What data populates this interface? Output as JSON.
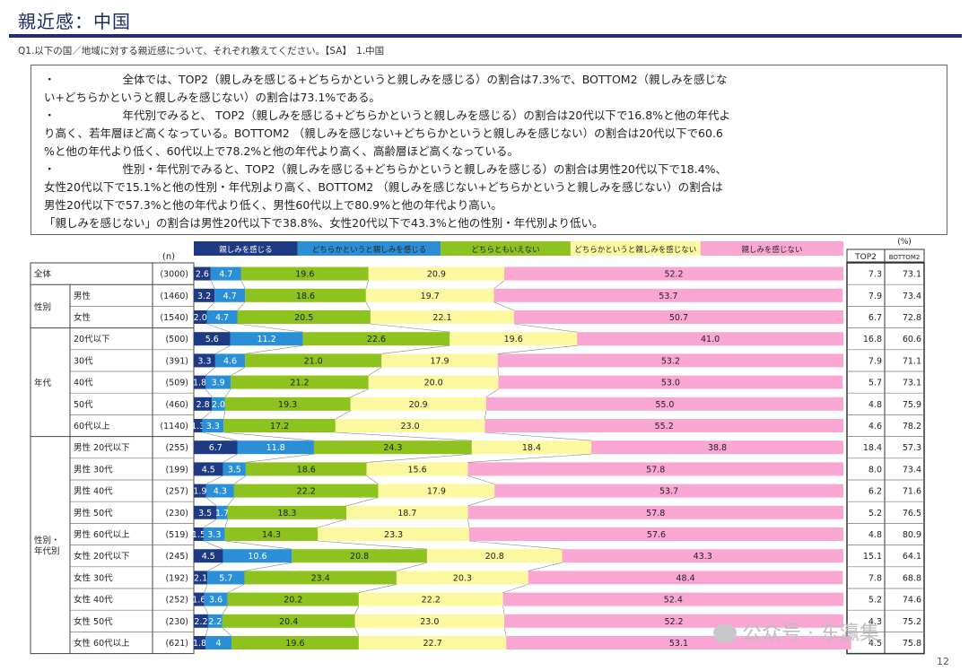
{
  "header": {
    "title": "親近感：中国",
    "question": "Q1.以下の国／地域に対する親近感について、それぞれ教えてください。【SA】　1.中国"
  },
  "summary": {
    "lines": [
      "・　　　　　　全体では、TOP2（親しみを感じる+どちらかというと親しみを感じる）の割合は7.3%で、BOTTOM2（親しみを感じな",
      "い+どちらかというと親しみを感じない）の割合は73.1%である。",
      "・　　　　　　年代別でみると、 TOP2（親しみを感じる+どちらかというと親しみを感じる）の割合は20代以下で16.8%と他の年代よ",
      "り高く、若年層ほど高くなっている。BOTTOM2 （親しみを感じない+どちらかというと親しみを感じない）の割合は20代以下で60.6",
      "%と他の年代より低く、60代以上で78.2%と他の年代より高く、高齢層ほど高くなっている。",
      "・　　　　　　性別・年代別でみると、TOP2（親しみを感じる+どちらかというと親しみを感じる）の割合は男性20代以下で18.4%、",
      "女性20代以下で15.1%と他の性別・年代別より高く、BOTTOM2 （親しみを感じない+どちらかというと親しみを感じない）の割合は",
      "男性20代以下で57.3%と他の年代より低く、男性60代以上で80.9%と他の年代より高い。",
      "「親しみを感じない」の割合は男性20代以下で38.8%、女性20代以下で43.3%と他の性別・年代別より低い。"
    ]
  },
  "page_number": "12",
  "watermark": "公众号 · 东瀛集",
  "chart_data": {
    "type": "bar",
    "orientation": "horizontal-stacked-100",
    "n_label": "(n)",
    "unit_label": "(%)",
    "top2_label": "TOP2",
    "bottom2_label": "BOTTOM2",
    "series": [
      {
        "name": "親しみを感じる",
        "color": "#1f3a84"
      },
      {
        "name": "どちらかというと親しみを感じる",
        "color": "#2a8fd6"
      },
      {
        "name": "どちらともいえない",
        "color": "#8dc21f"
      },
      {
        "name": "どちらかというと親しみを感じない",
        "color": "#fbf8a0"
      },
      {
        "name": "親しみを感じない",
        "color": "#f9a6d3"
      }
    ],
    "groups": [
      {
        "label": "",
        "rows": [
          0
        ]
      },
      {
        "label": "性別",
        "rows": [
          1,
          2
        ]
      },
      {
        "label": "年代",
        "rows": [
          3,
          4,
          5,
          6,
          7
        ]
      },
      {
        "label": "性別・\n年代別",
        "rows": [
          8,
          9,
          10,
          11,
          12,
          13,
          14,
          15,
          16,
          17
        ]
      }
    ],
    "rows": [
      {
        "label": "全体",
        "n": "(3000)",
        "values": [
          2.6,
          4.7,
          19.6,
          20.9,
          52.2
        ],
        "top2": "7.3",
        "bottom2": "73.1"
      },
      {
        "label": "男性",
        "n": "(1460)",
        "values": [
          3.2,
          4.7,
          18.6,
          19.7,
          53.7
        ],
        "top2": "7.9",
        "bottom2": "73.4"
      },
      {
        "label": "女性",
        "n": "(1540)",
        "values": [
          2.0,
          4.7,
          20.5,
          22.1,
          50.7
        ],
        "top2": "6.7",
        "bottom2": "72.8"
      },
      {
        "label": "20代以下",
        "n": "(500)",
        "values": [
          5.6,
          11.2,
          22.6,
          19.6,
          41.0
        ],
        "top2": "16.8",
        "bottom2": "60.6"
      },
      {
        "label": "30代",
        "n": "(391)",
        "values": [
          3.3,
          4.6,
          21.0,
          17.9,
          53.2
        ],
        "top2": "7.9",
        "bottom2": "71.1"
      },
      {
        "label": "40代",
        "n": "(509)",
        "values": [
          1.8,
          3.9,
          21.2,
          20.0,
          53.0
        ],
        "top2": "5.7",
        "bottom2": "73.1"
      },
      {
        "label": "50代",
        "n": "(460)",
        "values": [
          2.8,
          2.0,
          19.3,
          20.9,
          55.0
        ],
        "top2": "4.8",
        "bottom2": "75.9"
      },
      {
        "label": "60代以上",
        "n": "(1140)",
        "values": [
          1.3,
          3.3,
          17.2,
          23.0,
          55.2
        ],
        "top2": "4.6",
        "bottom2": "78.2"
      },
      {
        "label": "男性 20代以下",
        "n": "(255)",
        "values": [
          6.7,
          11.8,
          24.3,
          18.4,
          38.8
        ],
        "top2": "18.4",
        "bottom2": "57.3"
      },
      {
        "label": "男性 30代",
        "n": "(199)",
        "values": [
          4.5,
          3.5,
          18.6,
          15.6,
          57.8
        ],
        "top2": "8.0",
        "bottom2": "73.4"
      },
      {
        "label": "男性 40代",
        "n": "(257)",
        "values": [
          1.9,
          4.3,
          22.2,
          17.9,
          53.7
        ],
        "top2": "6.2",
        "bottom2": "71.6"
      },
      {
        "label": "男性 50代",
        "n": "(230)",
        "values": [
          3.5,
          1.7,
          18.3,
          18.7,
          57.8
        ],
        "top2": "5.2",
        "bottom2": "76.5"
      },
      {
        "label": "男性 60代以上",
        "n": "(519)",
        "values": [
          1.5,
          3.3,
          14.3,
          23.3,
          57.6
        ],
        "top2": "4.8",
        "bottom2": "80.9"
      },
      {
        "label": "女性 20代以下",
        "n": "(245)",
        "values": [
          4.5,
          10.6,
          20.8,
          20.8,
          43.3
        ],
        "top2": "15.1",
        "bottom2": "64.1"
      },
      {
        "label": "女性 30代",
        "n": "(192)",
        "values": [
          2.1,
          5.7,
          23.4,
          20.3,
          48.4
        ],
        "top2": "7.8",
        "bottom2": "68.8"
      },
      {
        "label": "女性 40代",
        "n": "(252)",
        "values": [
          1.6,
          3.6,
          20.2,
          22.2,
          52.4
        ],
        "top2": "5.2",
        "bottom2": "74.6"
      },
      {
        "label": "女性 50代",
        "n": "(230)",
        "values": [
          2.2,
          2.2,
          20.4,
          23.0,
          52.2
        ],
        "top2": "4.3",
        "bottom2": "75.2"
      },
      {
        "label": "女性 60代以上",
        "n": "(621)",
        "values": [
          1.8,
          4.0,
          19.6,
          22.7,
          53.1
        ],
        "top2": "4.5",
        "bottom2": "75.8"
      }
    ],
    "segment_labels": [
      [
        "2.6",
        "4.7",
        "19.6",
        "20.9",
        "52.2"
      ],
      [
        "3.2",
        "4.7",
        "18.6",
        "19.7",
        "53.7"
      ],
      [
        "2.0",
        "4.7",
        "20.5",
        "22.1",
        "50.7"
      ],
      [
        "5.6",
        "11.2",
        "22.6",
        "19.6",
        "41.0"
      ],
      [
        "3.3",
        "4.6",
        "21.0",
        "17.9",
        "53.2"
      ],
      [
        "1.8",
        "3.9",
        "21.2",
        "20.0",
        "53.0"
      ],
      [
        "2.8",
        "2.0",
        "19.3",
        "20.9",
        "55.0"
      ],
      [
        "1.3",
        "3.3",
        "17.2",
        "23.0",
        "55.2"
      ],
      [
        "6.7",
        "11.8",
        "24.3",
        "18.4",
        "38.8"
      ],
      [
        "4.5",
        "3.5",
        "18.6",
        "15.6",
        "57.8"
      ],
      [
        "1.9",
        "4.3",
        "22.2",
        "17.9",
        "53.7"
      ],
      [
        "3.5",
        "1.7",
        "18.3",
        "18.7",
        "57.8"
      ],
      [
        "1.5",
        "3.3",
        "14.3",
        "23.3",
        "57.6"
      ],
      [
        "4.5",
        "10.6",
        "20.8",
        "20.8",
        "43.3"
      ],
      [
        "2.1",
        "5.7",
        "23.4",
        "20.3",
        "48.4"
      ],
      [
        "1.6",
        "3.6",
        "20.2",
        "22.2",
        "52.4"
      ],
      [
        "2.2",
        "2.2",
        "20.4",
        "23.0",
        "52.2"
      ],
      [
        "1.8",
        "4",
        "19.6",
        "22.7",
        "53.1"
      ]
    ]
  }
}
